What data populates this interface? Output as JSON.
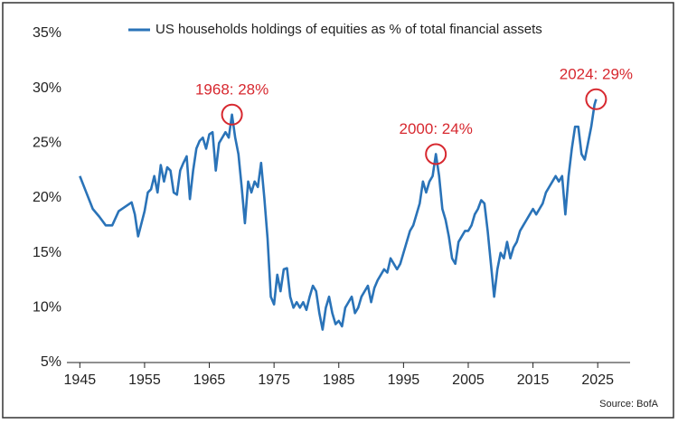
{
  "chart_data": {
    "type": "line",
    "source": "Source: BofA",
    "xlim": [
      1943,
      2030
    ],
    "xticks": [
      1945,
      1955,
      1965,
      1975,
      1985,
      1995,
      2005,
      2015,
      2025
    ],
    "ylim": [
      5,
      35
    ],
    "yticks": [
      {
        "value": 5,
        "label": "5%"
      },
      {
        "value": 10,
        "label": "10%"
      },
      {
        "value": 15,
        "label": "15%"
      },
      {
        "value": 20,
        "label": "20%"
      },
      {
        "value": 25,
        "label": "25%"
      },
      {
        "value": 30,
        "label": "30%"
      },
      {
        "value": 35,
        "label": "35%"
      }
    ],
    "grid": false,
    "legend": "top",
    "series": [
      {
        "name": "US households holdings of equities as % of total financial assets",
        "color": "#2a73b8",
        "x": [
          1945,
          1946,
          1947,
          1948,
          1949,
          1950,
          1951,
          1952,
          1953,
          1953.5,
          1954,
          1955,
          1955.5,
          1956,
          1956.5,
          1957,
          1957.5,
          1958,
          1958.5,
          1959,
          1959.5,
          1960,
          1960.5,
          1961,
          1961.5,
          1962,
          1962.5,
          1963,
          1963.5,
          1964,
          1964.5,
          1965,
          1965.5,
          1966,
          1966.5,
          1967,
          1967.5,
          1968,
          1968.5,
          1969,
          1969.5,
          1970,
          1970.5,
          1971,
          1971.5,
          1972,
          1972.5,
          1973,
          1973.5,
          1974,
          1974.5,
          1975,
          1975.5,
          1976,
          1976.5,
          1977,
          1977.5,
          1978,
          1978.5,
          1979,
          1979.5,
          1980,
          1980.5,
          1981,
          1981.5,
          1982,
          1982.5,
          1983,
          1983.5,
          1984,
          1984.5,
          1985,
          1985.5,
          1986,
          1986.5,
          1987,
          1987.5,
          1988,
          1988.5,
          1989,
          1989.5,
          1990,
          1990.5,
          1991,
          1991.5,
          1992,
          1992.5,
          1993,
          1993.5,
          1994,
          1994.5,
          1995,
          1995.5,
          1996,
          1996.5,
          1997,
          1997.5,
          1998,
          1998.5,
          1999,
          1999.5,
          2000,
          2000.5,
          2001,
          2001.5,
          2002,
          2002.5,
          2003,
          2003.5,
          2004,
          2004.5,
          2005,
          2005.5,
          2006,
          2006.5,
          2007,
          2007.5,
          2008,
          2008.5,
          2009,
          2009.5,
          2010,
          2010.5,
          2011,
          2011.5,
          2012,
          2012.5,
          2013,
          2013.5,
          2014,
          2014.5,
          2015,
          2015.5,
          2016,
          2016.5,
          2017,
          2017.5,
          2018,
          2018.5,
          2019,
          2019.5,
          2020,
          2020.5,
          2021,
          2021.5,
          2022,
          2022.5,
          2023,
          2023.5,
          2024,
          2024.5,
          2024.75
        ],
        "values": [
          22,
          20.5,
          19,
          18.3,
          17.5,
          17.5,
          18.8,
          19.2,
          19.6,
          18.5,
          16.5,
          18.8,
          20.5,
          20.8,
          22,
          20.5,
          23,
          21.5,
          22.8,
          22.5,
          20.5,
          20.3,
          22.5,
          23.2,
          23.8,
          19.9,
          22.5,
          24.5,
          25.2,
          25.5,
          24.5,
          25.8,
          26,
          22.5,
          25,
          25.5,
          26,
          25.5,
          27.6,
          25.5,
          24,
          21,
          17.7,
          21.5,
          20.5,
          21.5,
          21,
          23.2,
          20,
          16.3,
          11,
          10.3,
          13,
          11.5,
          13.5,
          13.6,
          11,
          10,
          10.5,
          10,
          10.5,
          9.8,
          11,
          12,
          11.5,
          9.5,
          8,
          10,
          11,
          9.5,
          8.5,
          8.8,
          8.3,
          10,
          10.5,
          11,
          9.5,
          10,
          11,
          11.5,
          12,
          10.5,
          11.8,
          12.5,
          13,
          13.5,
          13.2,
          14.5,
          14,
          13.5,
          14,
          15,
          16,
          17,
          17.5,
          18.5,
          19.5,
          21.5,
          20.5,
          21.5,
          22,
          24,
          22,
          19,
          18,
          16.5,
          14.5,
          14,
          16,
          16.5,
          17,
          17,
          17.5,
          18.5,
          19,
          19.8,
          19.5,
          17,
          14,
          11,
          13.5,
          15,
          14.5,
          16,
          14.5,
          15.5,
          16,
          17,
          17.5,
          18,
          18.5,
          19,
          18.5,
          19,
          19.5,
          20.5,
          21,
          21.5,
          22,
          21.5,
          22,
          18.5,
          22,
          24.5,
          26.5,
          26.5,
          24,
          23.5,
          25,
          26.5,
          28.5,
          29
        ]
      }
    ],
    "annotations": [
      {
        "text": "1968: 28%",
        "x": 1968.5,
        "y": 27.6
      },
      {
        "text": "2000: 24%",
        "x": 2000,
        "y": 24
      },
      {
        "text": "2024: 29%",
        "x": 2024.75,
        "y": 29
      }
    ]
  }
}
